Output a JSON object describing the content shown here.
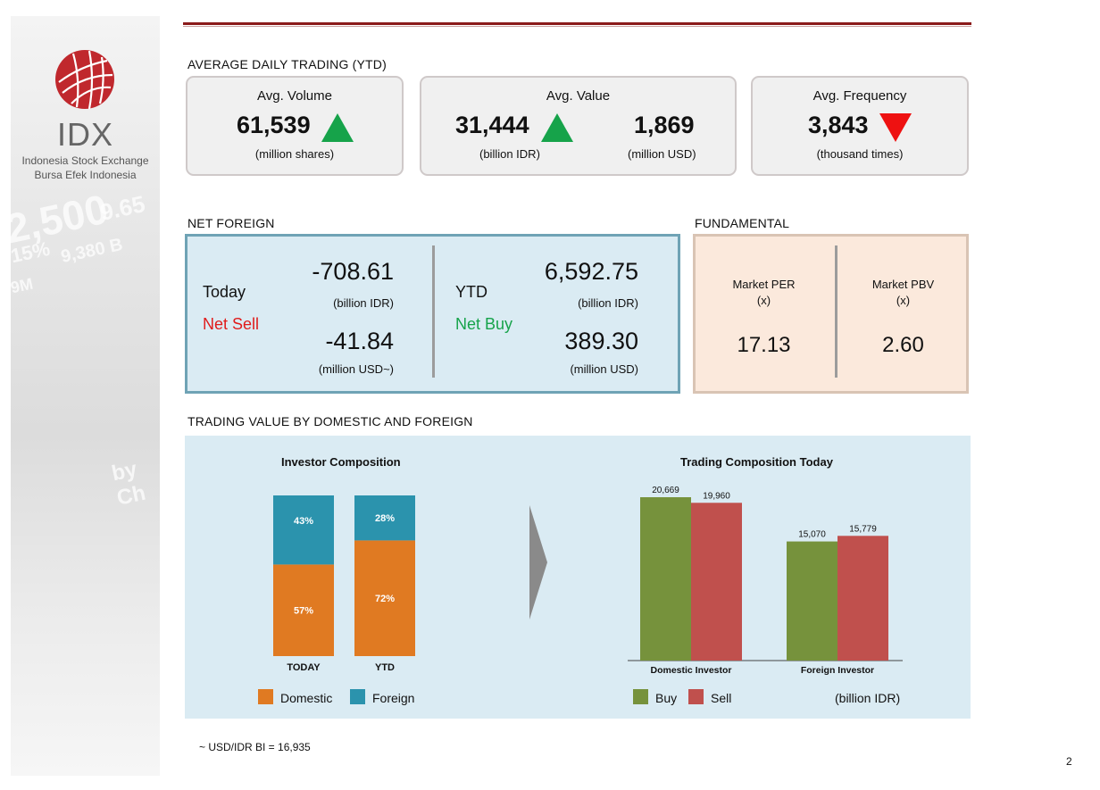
{
  "logo": {
    "name": "IDX",
    "line1": "Indonesia Stock Exchange",
    "line2": "Bursa  Efek  Indonesia"
  },
  "sidebar_bg": [
    "9,380 B",
    "9.65",
    "by Ch",
    "2,500",
    "15%",
    "9M"
  ],
  "colors": {
    "accent": "#8b1a1a",
    "up": "#16a34a",
    "down": "#ee1111",
    "sell_text": "#e01b1b",
    "buy_text": "#16a34a",
    "domestic": "#e07a22",
    "foreign": "#2b93ad",
    "buy": "#76923c",
    "sell": "#c0504d"
  },
  "adt": {
    "title": "AVERAGE DAILY TRADING (YTD)",
    "volume": {
      "label": "Avg. Volume",
      "value": "61,539",
      "unit": "(million shares)",
      "trend": "up"
    },
    "value": {
      "label": "Avg. Value",
      "idr": "31,444",
      "idr_unit": "(billion IDR)",
      "usd": "1,869",
      "usd_unit": "(million USD)",
      "trend": "up"
    },
    "frequency": {
      "label": "Avg. Frequency",
      "value": "3,843",
      "unit": "(thousand times)",
      "trend": "down"
    }
  },
  "net_foreign": {
    "title": "NET FOREIGN",
    "today": {
      "label": "Today",
      "status": "Net Sell",
      "idr": "-708.61",
      "idr_unit": "(billion IDR)",
      "usd": "-41.84",
      "usd_unit": "(million USD~)"
    },
    "ytd": {
      "label": "YTD",
      "status": "Net Buy",
      "idr": "6,592.75",
      "idr_unit": "(billion IDR)",
      "usd": "389.30",
      "usd_unit": "(million USD)"
    }
  },
  "fundamental": {
    "title": "FUNDAMENTAL",
    "per": {
      "label": "Market PER",
      "unit": "(x)",
      "value": "17.13"
    },
    "pbv": {
      "label": "Market PBV",
      "unit": "(x)",
      "value": "2.60"
    }
  },
  "trading": {
    "title": "TRADING VALUE BY DOMESTIC AND FOREIGN",
    "unit_note": "(billion IDR)"
  },
  "chart_data": [
    {
      "type": "bar",
      "stacked": true,
      "title": "Investor Composition",
      "categories": [
        "TODAY",
        "YTD"
      ],
      "series": [
        {
          "name": "Domestic",
          "values": [
            57,
            72
          ],
          "labels": [
            "57%",
            "72%"
          ]
        },
        {
          "name": "Foreign",
          "values": [
            43,
            28
          ],
          "labels": [
            "43%",
            "28%"
          ]
        }
      ],
      "ylim": [
        0,
        100
      ]
    },
    {
      "type": "bar",
      "title": "Trading Composition Today",
      "categories": [
        "Domestic Investor",
        "Foreign Investor"
      ],
      "series": [
        {
          "name": "Buy",
          "values": [
            20669,
            15070
          ],
          "labels": [
            "20,669",
            "15,070"
          ]
        },
        {
          "name": "Sell",
          "values": [
            19960,
            15779
          ],
          "labels": [
            "19,960",
            "15,779"
          ]
        }
      ],
      "ylim": [
        0,
        22000
      ],
      "unit": "(billion IDR)"
    }
  ],
  "footnote": "~ USD/IDR BI = 16,935",
  "page_number": "2"
}
